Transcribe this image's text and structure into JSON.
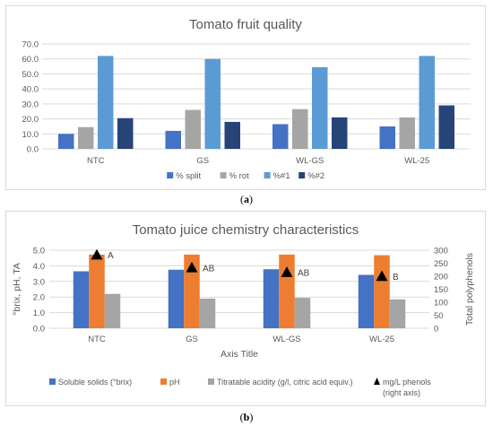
{
  "captions": {
    "a": "a",
    "b": "b"
  },
  "chart_data": [
    {
      "type": "bar",
      "title": "Tomato  fruit quality",
      "categories": [
        "NTC",
        "GS",
        "WL-GS",
        "WL-25"
      ],
      "ylim": [
        0,
        70
      ],
      "yticks": [
        "0.0",
        "10.0",
        "20.0",
        "30.0",
        "40.0",
        "50.0",
        "60.0",
        "70.0"
      ],
      "grid": true,
      "legend_position": "bottom",
      "series": [
        {
          "name": "% split",
          "color": "#4472c4",
          "values": [
            10.0,
            12.0,
            16.5,
            15.0
          ]
        },
        {
          "name": "% rot",
          "color": "#a5a5a5",
          "values": [
            14.5,
            26.0,
            26.5,
            21.0
          ]
        },
        {
          "name": "%#1",
          "color": "#5b9bd5",
          "values": [
            62.0,
            60.0,
            54.5,
            62.0
          ]
        },
        {
          "name": "%#2",
          "color": "#264478",
          "values": [
            20.5,
            18.0,
            21.0,
            29.0
          ]
        }
      ]
    },
    {
      "type": "bar",
      "title": "Tomato juice chemistry characteristics",
      "xlabel": "Axis Title",
      "ylabel": "°brix, pH, TA",
      "y2label": "Total polyphenols",
      "categories": [
        "NTC",
        "GS",
        "WL-GS",
        "WL-25"
      ],
      "ylim": [
        0,
        5
      ],
      "yticks": [
        "0.0",
        "1.0",
        "2.0",
        "3.0",
        "4.0",
        "5.0"
      ],
      "y2lim": [
        0,
        300
      ],
      "y2ticks": [
        "0",
        "50",
        "100",
        "150",
        "200",
        "250",
        "300"
      ],
      "grid": true,
      "legend_position": "bottom",
      "series": [
        {
          "name": "Soluble solids (°brix)",
          "color": "#4472c4",
          "values": [
            3.65,
            3.75,
            3.78,
            3.42
          ]
        },
        {
          "name": "pH",
          "color": "#ed7d31",
          "values": [
            4.72,
            4.72,
            4.72,
            4.68
          ]
        },
        {
          "name": "Titratable acidity (g/l, citric acid equiv.)",
          "color": "#a5a5a5",
          "values": [
            2.2,
            1.9,
            1.95,
            1.85
          ]
        }
      ],
      "markers": {
        "name": "mg/L phenols",
        "name_line2": "(right axis)",
        "color": "#000000",
        "axis": "right",
        "values": [
          282,
          233,
          215,
          200
        ],
        "labels": [
          "A",
          "AB",
          "AB",
          "B"
        ]
      }
    }
  ]
}
